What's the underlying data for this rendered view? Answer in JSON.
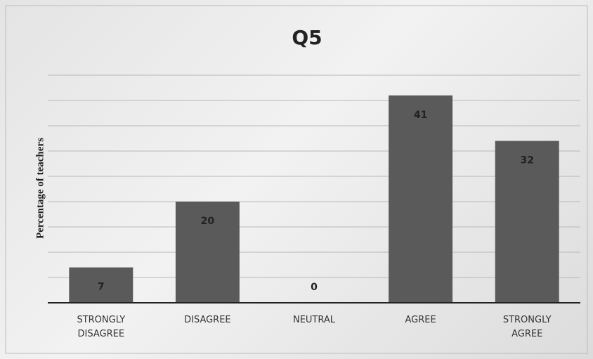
{
  "chart_data": {
    "type": "bar",
    "title": "Q5",
    "y_label": "Percentage of teachers",
    "categories": [
      "STRONGLY DISAGREE",
      "DISAGREE",
      "NEUTRAL",
      "AGREE",
      "STRONGLY AGREE"
    ],
    "values": [
      7,
      20,
      0,
      41,
      32
    ],
    "color": "#5a5a5a",
    "ylim": [
      0,
      45
    ],
    "yticks": [
      0,
      5,
      10,
      15,
      20,
      25,
      30,
      35,
      40,
      45
    ],
    "grid": true
  }
}
